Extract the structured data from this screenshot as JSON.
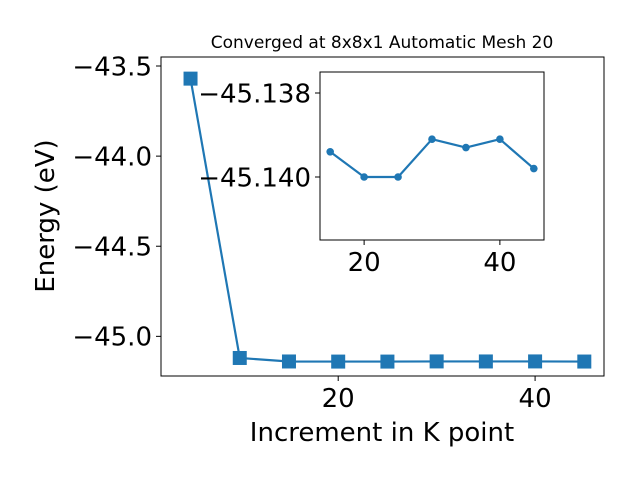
{
  "chart_data": [
    {
      "type": "line",
      "title": "Converged at 8x8x1 Automatic Mesh 20",
      "xlabel": "Increment in K point",
      "ylabel": "Energy (eV)",
      "xlim": [
        2.0,
        47.0
      ],
      "ylim": [
        -45.22,
        -43.45
      ],
      "xticks": [
        20,
        40
      ],
      "yticks": [
        -45.0,
        -44.5,
        -44.0,
        -43.5
      ],
      "ytick_labels": [
        "−45.0",
        "−44.5",
        "−44.0",
        "−43.5"
      ],
      "grid": false,
      "legend": "none",
      "marker": "square",
      "color": "#1f77b4",
      "series": [
        {
          "x": [
            5,
            10,
            15,
            20,
            25,
            30,
            35,
            40,
            45
          ],
          "y": [
            -43.57,
            -45.12,
            -45.1394,
            -45.14,
            -45.14,
            -45.1391,
            -45.1393,
            -45.1391,
            -45.1398
          ]
        }
      ]
    },
    {
      "type": "line",
      "title": "",
      "xlabel": "",
      "ylabel": "",
      "xlim": [
        13.5,
        46.5
      ],
      "ylim": [
        -45.1415,
        -45.1375
      ],
      "xticks": [
        20,
        40
      ],
      "yticks": [
        -45.14,
        -45.138
      ],
      "ytick_labels": [
        "−45.140",
        "−45.138"
      ],
      "grid": false,
      "legend": "none",
      "marker": "circle",
      "color": "#1f77b4",
      "series": [
        {
          "x": [
            15,
            20,
            25,
            30,
            35,
            40,
            45
          ],
          "y": [
            -45.1394,
            -45.14,
            -45.14,
            -45.1391,
            -45.1393,
            -45.1391,
            -45.1398
          ]
        }
      ]
    }
  ]
}
